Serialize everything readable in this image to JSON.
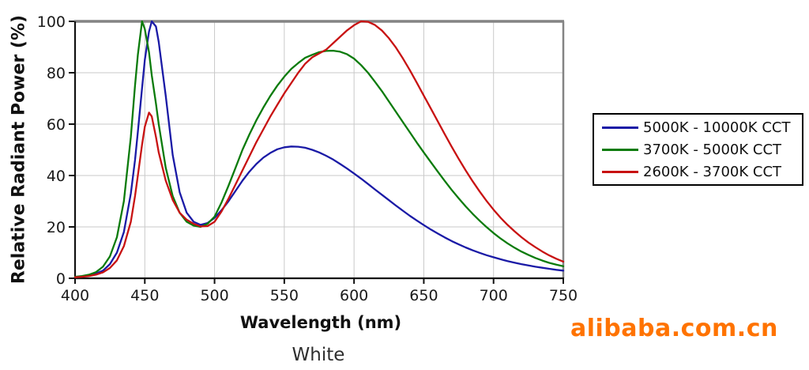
{
  "caption": "White",
  "watermark": {
    "text": "alibaba.com.cn",
    "color": "#FF7300"
  },
  "chart_data": {
    "type": "line",
    "title": "",
    "xlabel": "Wavelength (nm)",
    "ylabel": "Relative Radiant Power (%)",
    "xlim": [
      400,
      750
    ],
    "ylim": [
      0,
      100
    ],
    "xticks": [
      400,
      450,
      500,
      550,
      600,
      650,
      700,
      750
    ],
    "yticks": [
      0,
      20,
      40,
      60,
      80,
      100
    ],
    "grid": true,
    "grid_color": "#c9c9c9",
    "border_color": "#848484",
    "axis_color": "#111111",
    "legend_position": "right",
    "x": [
      400,
      405,
      410,
      415,
      420,
      425,
      430,
      435,
      440,
      443,
      445,
      448,
      450,
      453,
      455,
      458,
      460,
      465,
      470,
      475,
      480,
      485,
      490,
      495,
      500,
      505,
      510,
      515,
      520,
      525,
      530,
      535,
      540,
      545,
      550,
      555,
      560,
      565,
      570,
      575,
      580,
      585,
      590,
      595,
      600,
      605,
      610,
      615,
      620,
      625,
      630,
      635,
      640,
      645,
      650,
      655,
      660,
      665,
      670,
      675,
      680,
      685,
      690,
      695,
      700,
      705,
      710,
      715,
      720,
      725,
      730,
      735,
      740,
      745,
      750
    ],
    "series": [
      {
        "name": "5000K - 10000K CCT",
        "color": "#1a1aa6",
        "peak_nm": 455,
        "y": [
          0.5,
          0.7,
          1.1,
          1.8,
          3,
          5.5,
          10,
          18,
          33,
          46,
          57,
          74,
          85,
          96,
          100,
          98,
          92,
          71,
          48,
          33.5,
          25.5,
          22,
          20.8,
          21.5,
          23.5,
          26.5,
          30,
          34,
          38,
          41.5,
          44.5,
          47,
          48.8,
          50.2,
          51,
          51.3,
          51.2,
          50.8,
          50,
          49,
          47.7,
          46.2,
          44.5,
          42.7,
          40.8,
          38.8,
          36.7,
          34.6,
          32.5,
          30.4,
          28.3,
          26.3,
          24.3,
          22.5,
          20.7,
          19,
          17.4,
          15.9,
          14.5,
          13.2,
          12,
          10.9,
          9.9,
          9,
          8.2,
          7.4,
          6.7,
          6.1,
          5.5,
          5,
          4.5,
          4.1,
          3.7,
          3.3,
          3
        ]
      },
      {
        "name": "3700K - 5000K CCT",
        "color": "#0b7b0b",
        "peak_nm": 448,
        "y": [
          0.6,
          0.9,
          1.4,
          2.4,
          4.5,
          8.5,
          16,
          30,
          55,
          75,
          87,
          100,
          97,
          88,
          79,
          68,
          60,
          43,
          32,
          25.5,
          22,
          20.5,
          20,
          21.2,
          24,
          29.5,
          36,
          43,
          50,
          56,
          61.5,
          66.5,
          71,
          75,
          78.5,
          81.5,
          83.8,
          85.8,
          87,
          88,
          88.5,
          88.6,
          88.2,
          87.2,
          85.5,
          83,
          80,
          76.5,
          72.8,
          68.8,
          64.8,
          60.8,
          56.8,
          52.8,
          49,
          45.2,
          41.5,
          37.9,
          34.4,
          31.1,
          28,
          25.1,
          22.4,
          19.9,
          17.6,
          15.5,
          13.6,
          11.9,
          10.4,
          9.1,
          7.9,
          6.9,
          6,
          5.3,
          4.7
        ]
      },
      {
        "name": "2600K - 3700K CCT",
        "color": "#c81212",
        "peak_nm": 605,
        "y": [
          0.4,
          0.6,
          0.9,
          1.4,
          2.3,
          4,
          7,
          12.5,
          22,
          32,
          40,
          52,
          59,
          64.5,
          63,
          55,
          49,
          38,
          30.5,
          25.5,
          22.8,
          21.2,
          20.2,
          20.3,
          22,
          26,
          31,
          36.5,
          42,
          47.5,
          53,
          58,
          63,
          67.5,
          72,
          76,
          80,
          83.5,
          86,
          87.5,
          89,
          91.5,
          94,
          96.5,
          98.5,
          100,
          99.8,
          98.6,
          96.4,
          93.4,
          89.8,
          85.6,
          81,
          76.1,
          71.1,
          66.1,
          61.1,
          56.1,
          51.2,
          46.5,
          42,
          37.8,
          33.8,
          30.1,
          26.7,
          23.6,
          20.8,
          18.3,
          16,
          13.9,
          12.1,
          10.4,
          8.9,
          7.6,
          6.5
        ]
      }
    ]
  }
}
